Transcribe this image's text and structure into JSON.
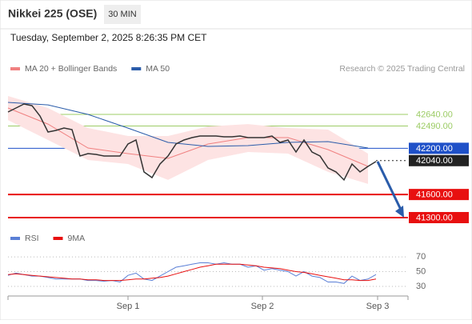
{
  "header": {
    "title": "Nikkei 225 (OSE)",
    "interval": "30 MIN",
    "timestamp": "Tuesday, September 2, 2025 8:26:35 PM CET",
    "credit": "Research © 2025 Trading Central"
  },
  "chart_data": [
    {
      "type": "line",
      "x": [
        0,
        2,
        4,
        6,
        8,
        10,
        12,
        14,
        16,
        18,
        20,
        22,
        24,
        26,
        28,
        30,
        32,
        34,
        36,
        38,
        40,
        42,
        44,
        46,
        48,
        50,
        52,
        54,
        56,
        58,
        60,
        62,
        64,
        66,
        68,
        70,
        72,
        74,
        76,
        78,
        80,
        82,
        84,
        86,
        88,
        90,
        92
      ],
      "values": [
        42671,
        42723,
        42775,
        42754,
        42619,
        42412,
        42432,
        42464,
        42443,
        42100,
        42131,
        42121,
        42100,
        42100,
        42100,
        42256,
        42308,
        41893,
        41820,
        41996,
        42100,
        42256,
        42308,
        42339,
        42360,
        42360,
        42360,
        42349,
        42349,
        42360,
        42339,
        42339,
        42339,
        42360,
        42277,
        42308,
        42152,
        42308,
        42152,
        42100,
        41945,
        41893,
        41789,
        41996,
        41893,
        41965,
        42028
      ],
      "color": "#333333",
      "series": [
        {
          "name": "MA 20 + Bollinger Bands",
          "color": "#f08080",
          "band_color": "#fde3e3",
          "x": [
            0,
            10,
            20,
            30,
            40,
            50,
            60,
            70,
            80,
            90
          ],
          "values": [
            42723,
            42515,
            42204,
            42131,
            42069,
            42256,
            42339,
            42339,
            42183,
            41965
          ],
          "upper": [
            42879,
            42723,
            42464,
            42360,
            42360,
            42484,
            42515,
            42464,
            42443,
            42131
          ],
          "lower": [
            42567,
            42308,
            42048,
            41996,
            41789,
            42048,
            42152,
            42131,
            41893,
            41737
          ]
        },
        {
          "name": "MA 50",
          "color": "#2a5caa",
          "x": [
            0,
            10,
            20,
            30,
            40,
            50,
            60,
            70,
            80,
            90
          ],
          "values": [
            42796,
            42764,
            42640,
            42463,
            42277,
            42225,
            42235,
            42277,
            42287,
            42204
          ]
        }
      ],
      "levels": [
        {
          "value": 42640,
          "label": "42640.00",
          "color": "#9ccc65",
          "filled": false
        },
        {
          "value": 42490,
          "label": "42490.00",
          "color": "#9ccc65",
          "filled": false
        },
        {
          "value": 42200,
          "label": "42200.00",
          "color": "#1e50c8",
          "filled": true
        },
        {
          "value": 42040,
          "label": "42040.00",
          "color": "#222222",
          "filled": true
        },
        {
          "value": 41600,
          "label": "41600.00",
          "color": "#e81010",
          "filled": true
        },
        {
          "value": 41300,
          "label": "41300.00",
          "color": "#e81010",
          "filled": true
        }
      ],
      "xlim": [
        0,
        100
      ],
      "ylim": [
        41165,
        43087
      ]
    },
    {
      "type": "line",
      "x": [
        0,
        2,
        4,
        6,
        8,
        10,
        12,
        14,
        16,
        18,
        20,
        22,
        24,
        26,
        28,
        30,
        32,
        34,
        36,
        38,
        40,
        42,
        44,
        46,
        48,
        50,
        52,
        54,
        56,
        58,
        60,
        62,
        64,
        66,
        68,
        70,
        72,
        74,
        76,
        78,
        80,
        82,
        84,
        86,
        88,
        90,
        92
      ],
      "series": [
        {
          "name": "RSI",
          "color": "#5a7fd6",
          "values": [
            45,
            48,
            46,
            44,
            44,
            42,
            40,
            40,
            40,
            40,
            38,
            38,
            37,
            38,
            36,
            45,
            48,
            40,
            38,
            44,
            50,
            56,
            58,
            60,
            62,
            62,
            60,
            62,
            60,
            60,
            56,
            58,
            52,
            54,
            52,
            50,
            44,
            50,
            44,
            42,
            36,
            36,
            34,
            44,
            38,
            40,
            46
          ]
        },
        {
          "name": "9MA",
          "color": "#e81010",
          "values": [
            46,
            47,
            46,
            45,
            44,
            43,
            42,
            41,
            40,
            40,
            39,
            39,
            38,
            38,
            38,
            39,
            40,
            40,
            41,
            42,
            44,
            47,
            50,
            53,
            56,
            58,
            60,
            60,
            60,
            60,
            59,
            58,
            56,
            55,
            54,
            52,
            50,
            49,
            47,
            45,
            43,
            41,
            39,
            39,
            38,
            38,
            40
          ]
        }
      ],
      "xlim": [
        0,
        100
      ],
      "ylim": [
        17,
        82
      ],
      "yticks": [
        30,
        50,
        70
      ],
      "xticks": [
        {
          "value": 30,
          "label": "Sep 1"
        },
        {
          "value": 63.6,
          "label": "Sep 2"
        },
        {
          "value": 92.4,
          "label": "Sep 3"
        }
      ]
    }
  ]
}
